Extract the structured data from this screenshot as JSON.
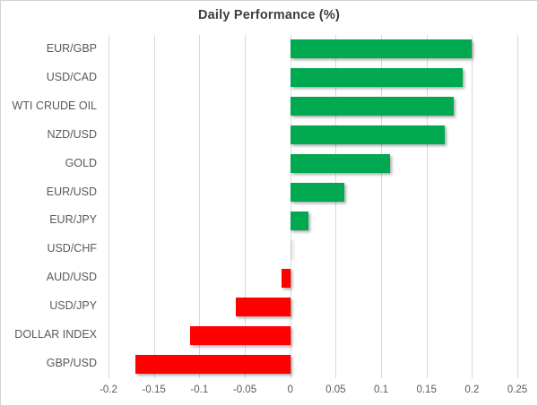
{
  "chart_data": {
    "type": "bar",
    "orientation": "horizontal",
    "title": "Daily Performance (%)",
    "categories": [
      "EUR/GBP",
      "USD/CAD",
      "WTI CRUDE OIL",
      "NZD/USD",
      "GOLD",
      "EUR/USD",
      "EUR/JPY",
      "USD/CHF",
      "AUD/USD",
      "USD/JPY",
      "DOLLAR INDEX",
      "GBP/USD"
    ],
    "values": [
      0.2,
      0.19,
      0.18,
      0.17,
      0.11,
      0.06,
      0.02,
      0.0,
      -0.01,
      -0.06,
      -0.11,
      -0.17
    ],
    "xlim": [
      -0.2,
      0.25
    ],
    "x_tick_values": [
      -0.2,
      -0.15,
      -0.1,
      -0.05,
      0,
      0.05,
      0.1,
      0.15,
      0.2,
      0.25
    ],
    "x_tick_labels": [
      "-0.2",
      "-0.15",
      "-0.1",
      "-0.05",
      "0",
      "0.05",
      "0.1",
      "0.15",
      "0.2",
      "0.25"
    ],
    "grid": "vertical",
    "legend": "none",
    "colors": {
      "positive": "#00a950",
      "negative": "#ff0000",
      "gridline": "#d9d9d9",
      "axis_text": "#595959",
      "title_text": "#3d3d3d",
      "frame_border": "#d2d2d2"
    }
  }
}
